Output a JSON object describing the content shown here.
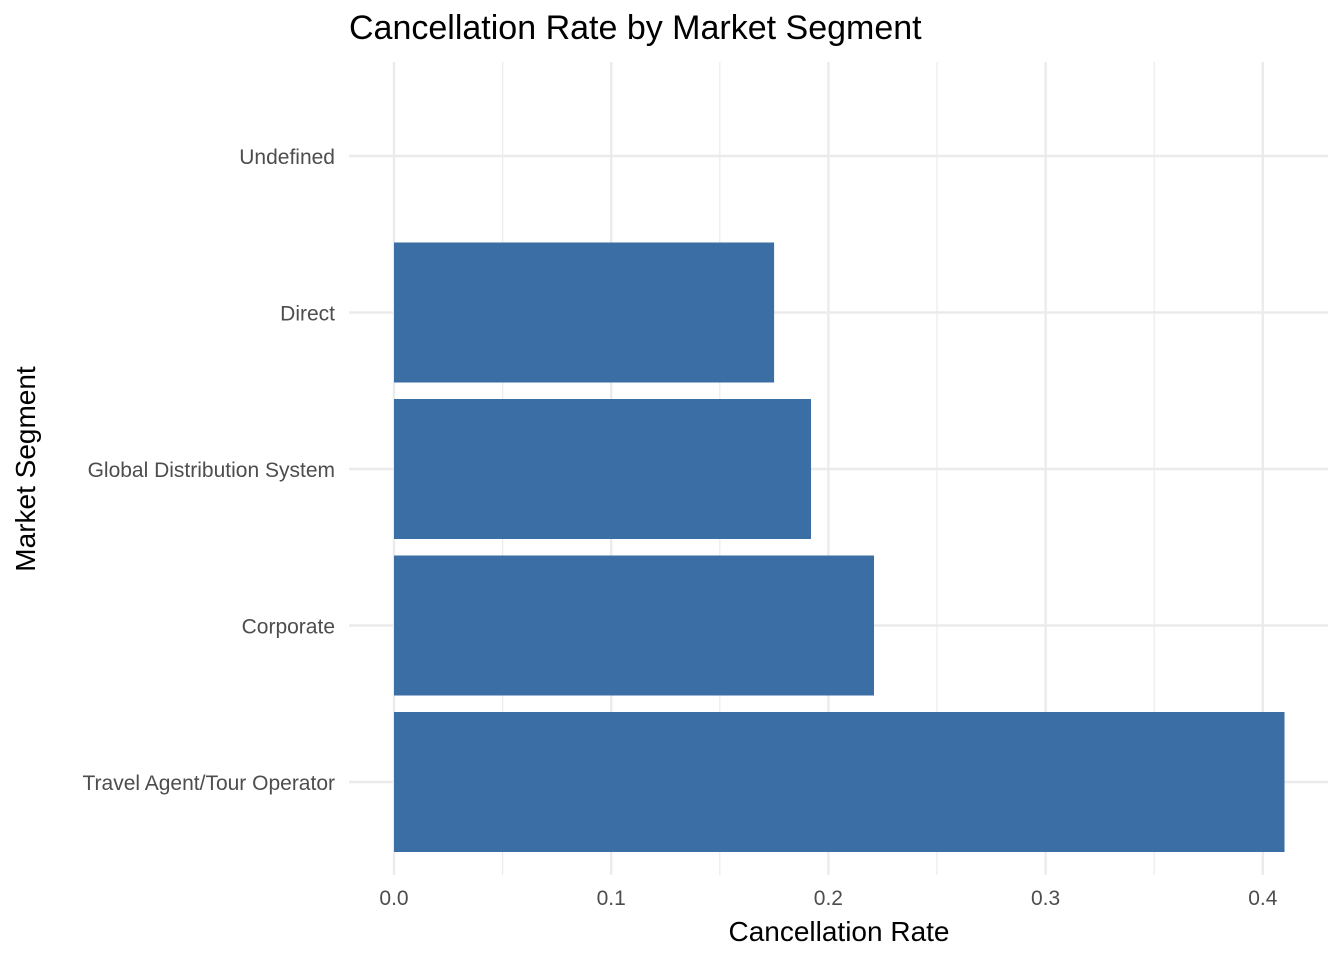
{
  "chart_data": {
    "type": "bar",
    "orientation": "horizontal",
    "title": "Cancellation Rate by Market Segment",
    "xlabel": "Cancellation Rate",
    "ylabel": "Market Segment",
    "categories": [
      "Travel Agent/Tour Operator",
      "Corporate",
      "Global Distribution System",
      "Direct",
      "Undefined"
    ],
    "values": [
      0.41,
      0.221,
      0.192,
      0.175,
      null
    ],
    "xlim": [
      0,
      0.41
    ],
    "xticks": [
      "0.0",
      "0.1",
      "0.2",
      "0.3",
      "0.4"
    ],
    "xtick_values": [
      0,
      0.1,
      0.2,
      0.3,
      0.4
    ],
    "grid": true,
    "legend": "none",
    "bar_color": "#3A6EA5",
    "grid_color": "#EBEBEB"
  }
}
